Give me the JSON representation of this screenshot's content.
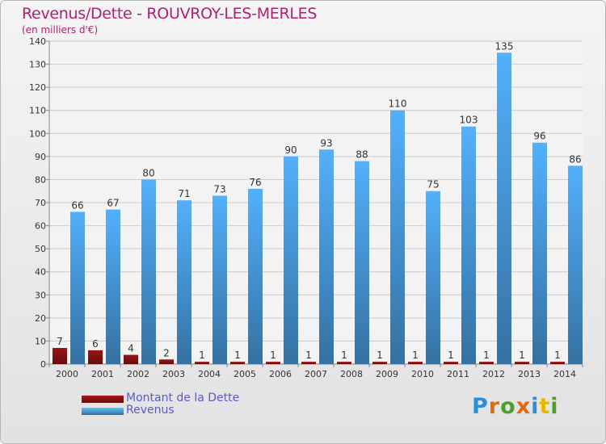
{
  "title": "Revenus/Dette - ROUVROY-LES-MERLES",
  "subtitle": "(en milliers d'€)",
  "legend": [
    {
      "label": "Montant de la Dette",
      "color": "#8b1212"
    },
    {
      "label": "Revenus",
      "color": "#4a9de0"
    }
  ],
  "logo": {
    "text": "Proxiti",
    "letter_colors": [
      "#2a8fd8",
      "#e06a10",
      "#4aa02a",
      "#e06a10",
      "#2a8fd8",
      "#e8b800",
      "#4aa02a"
    ]
  },
  "chart_data": {
    "type": "bar",
    "categories": [
      "2000",
      "2001",
      "2002",
      "2003",
      "2004",
      "2005",
      "2006",
      "2007",
      "2008",
      "2009",
      "2010",
      "2011",
      "2012",
      "2013",
      "2014"
    ],
    "series": [
      {
        "name": "Montant de la Dette",
        "values": [
          7,
          6,
          4,
          2,
          1,
          1,
          1,
          1,
          1,
          1,
          1,
          1,
          1,
          1,
          1
        ],
        "color": "#8b1212"
      },
      {
        "name": "Revenus",
        "values": [
          66,
          67,
          80,
          71,
          73,
          76,
          90,
          93,
          88,
          110,
          75,
          103,
          135,
          96,
          86
        ],
        "color": "#4a9de0"
      }
    ],
    "ylim": [
      0,
      140
    ],
    "yticks": [
      0,
      10,
      20,
      30,
      40,
      50,
      60,
      70,
      80,
      90,
      100,
      110,
      120,
      130,
      140
    ],
    "grid": true,
    "legend": "bottom-left"
  }
}
